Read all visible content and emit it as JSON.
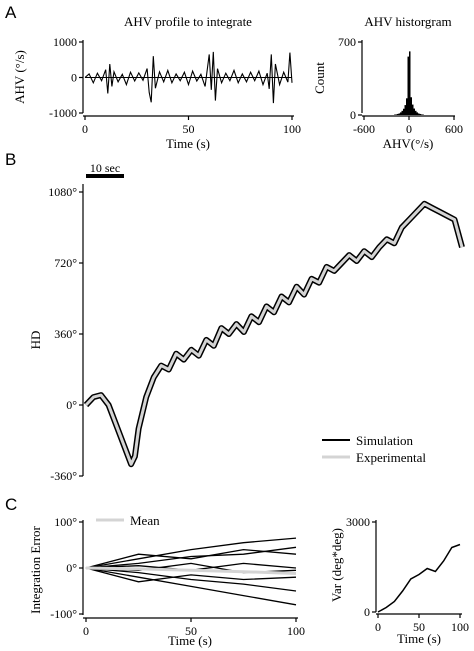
{
  "panel_letters": [
    "A",
    "B",
    "C"
  ],
  "chart_data": [
    {
      "id": "ahv_profile",
      "type": "line",
      "title": "AHV profile to integrate",
      "xlabel": "Time (s)",
      "ylabel": "AHV (°/s)",
      "xlim": [
        0,
        100
      ],
      "ylim": [
        -1000,
        1000
      ],
      "xticks": [
        0,
        50,
        100
      ],
      "yticks": [
        1000,
        0,
        -1000
      ],
      "color": "#000000",
      "series": [
        {
          "x": [
            0,
            2,
            4,
            6,
            8,
            10,
            11,
            12,
            13,
            14,
            16,
            18,
            20,
            22,
            24,
            26,
            28,
            30,
            31,
            32,
            33,
            34,
            36,
            38,
            40,
            42,
            44,
            46,
            48,
            50,
            52,
            54,
            56,
            58,
            60,
            61,
            62,
            63,
            64,
            66,
            68,
            70,
            72,
            74,
            76,
            78,
            80,
            82,
            84,
            86,
            88,
            89,
            90,
            91,
            92,
            94,
            96,
            98,
            99,
            100
          ],
          "values": [
            0,
            100,
            -150,
            120,
            -90,
            220,
            -450,
            380,
            -250,
            160,
            -120,
            90,
            -200,
            150,
            -100,
            130,
            -80,
            250,
            -420,
            -700,
            600,
            -300,
            160,
            -120,
            200,
            -150,
            100,
            -90,
            150,
            -200,
            180,
            -100,
            90,
            -250,
            650,
            -350,
            720,
            -650,
            250,
            -150,
            120,
            -90,
            200,
            -150,
            100,
            -120,
            150,
            -90,
            180,
            -200,
            120,
            -320,
            650,
            -720,
            380,
            -200,
            150,
            -130,
            700,
            -150
          ]
        }
      ]
    },
    {
      "id": "ahv_histogram",
      "type": "bar",
      "title": "AHV historgram",
      "xlabel": "AHV(°/s)",
      "ylabel": "Count",
      "xlim": [
        -600,
        600
      ],
      "ylim": [
        0,
        700
      ],
      "xticks": [
        -600,
        0,
        600
      ],
      "yticks": [
        700,
        0
      ],
      "color": "#000000",
      "categories": [
        -190,
        -170,
        -150,
        -130,
        -110,
        -90,
        -70,
        -50,
        -30,
        -10,
        10,
        30,
        50,
        70,
        90,
        110,
        130,
        150,
        170,
        190
      ],
      "values": [
        4,
        6,
        10,
        15,
        25,
        40,
        60,
        95,
        160,
        560,
        610,
        170,
        100,
        62,
        40,
        25,
        15,
        10,
        6,
        4
      ]
    },
    {
      "id": "hd_trace",
      "type": "line",
      "ylabel": "HD",
      "ylim": [
        -360,
        1080
      ],
      "yticks": [
        1080,
        720,
        360,
        0,
        -360
      ],
      "ytick_suffix": "°",
      "scale_bar_label": "10 sec",
      "scale_bar_seconds": 10,
      "xlim": [
        0,
        100
      ],
      "legend": {
        "position": "bottom-right"
      },
      "series": [
        {
          "name": "Simulation",
          "color": "#000000",
          "width": 6,
          "x": [
            0,
            2,
            4,
            6,
            8,
            10,
            12,
            13,
            14,
            16,
            18,
            20,
            22,
            24,
            26,
            28,
            30,
            32,
            34,
            36,
            38,
            40,
            42,
            44,
            46,
            48,
            50,
            52,
            54,
            56,
            58,
            60,
            62,
            64,
            66,
            68,
            70,
            72,
            74,
            76,
            78,
            80,
            82,
            84,
            86,
            88,
            90,
            92,
            94,
            96,
            98,
            100
          ],
          "values": [
            0,
            40,
            50,
            0,
            -100,
            -200,
            -300,
            -260,
            -120,
            40,
            140,
            200,
            180,
            260,
            230,
            280,
            250,
            330,
            300,
            390,
            360,
            410,
            370,
            450,
            420,
            500,
            470,
            550,
            520,
            600,
            560,
            640,
            620,
            700,
            680,
            720,
            760,
            730,
            780,
            750,
            800,
            840,
            820,
            900,
            940,
            980,
            1020,
            1000,
            980,
            960,
            940,
            800
          ]
        },
        {
          "name": "Experimental",
          "color": "#d4d4d4",
          "width": 3,
          "x": [
            0,
            2,
            4,
            6,
            8,
            10,
            12,
            13,
            14,
            16,
            18,
            20,
            22,
            24,
            26,
            28,
            30,
            32,
            34,
            36,
            38,
            40,
            42,
            44,
            46,
            48,
            50,
            52,
            54,
            56,
            58,
            60,
            62,
            64,
            66,
            68,
            70,
            72,
            74,
            76,
            78,
            80,
            82,
            84,
            86,
            88,
            90,
            92,
            94,
            96,
            98,
            100
          ],
          "values": [
            0,
            40,
            50,
            0,
            -100,
            -200,
            -300,
            -260,
            -120,
            40,
            140,
            200,
            180,
            260,
            230,
            280,
            250,
            330,
            300,
            390,
            360,
            410,
            370,
            450,
            420,
            500,
            470,
            550,
            520,
            600,
            560,
            640,
            620,
            700,
            680,
            720,
            760,
            730,
            780,
            750,
            800,
            840,
            820,
            900,
            940,
            980,
            1020,
            1000,
            980,
            960,
            940,
            800
          ]
        }
      ]
    },
    {
      "id": "integration_error",
      "type": "line",
      "xlabel": "Time (s)",
      "ylabel": "Integration Error",
      "xlim": [
        0,
        100
      ],
      "ylim": [
        -100,
        100
      ],
      "xticks": [
        0,
        50,
        100
      ],
      "yticks": [
        100,
        0,
        -100
      ],
      "ytick_suffix": "°",
      "legend": {
        "position": "top-left",
        "label": "Mean"
      },
      "spread_series": [
        {
          "x": [
            0,
            25,
            50,
            75,
            100
          ],
          "values": [
            0,
            20,
            40,
            55,
            65
          ]
        },
        {
          "x": [
            0,
            25,
            50,
            75,
            100
          ],
          "values": [
            0,
            -20,
            -40,
            -60,
            -80
          ]
        },
        {
          "x": [
            0,
            25,
            50,
            75,
            100
          ],
          "values": [
            0,
            10,
            25,
            30,
            45
          ]
        },
        {
          "x": [
            0,
            25,
            50,
            75,
            100
          ],
          "values": [
            0,
            -10,
            -25,
            -35,
            -50
          ]
        },
        {
          "x": [
            0,
            25,
            50,
            75,
            100
          ],
          "values": [
            0,
            30,
            20,
            40,
            30
          ]
        },
        {
          "x": [
            0,
            25,
            50,
            75,
            100
          ],
          "values": [
            0,
            -30,
            -15,
            -25,
            -20
          ]
        },
        {
          "x": [
            0,
            25,
            50,
            75,
            100
          ],
          "values": [
            0,
            5,
            -5,
            10,
            0
          ]
        },
        {
          "x": [
            0,
            25,
            50,
            75,
            100
          ],
          "values": [
            0,
            -5,
            10,
            -10,
            -5
          ]
        }
      ],
      "mean_series": {
        "name": "Mean",
        "color": "#d4d4d4",
        "x": [
          0,
          25,
          50,
          75,
          100
        ],
        "values": [
          0,
          -2,
          -5,
          -8,
          -12
        ]
      }
    },
    {
      "id": "variance",
      "type": "line",
      "xlabel": "Time (s)",
      "ylabel": "Var (deg*deg)",
      "xlim": [
        0,
        100
      ],
      "ylim": [
        0,
        3000
      ],
      "xticks": [
        0,
        50,
        100
      ],
      "yticks": [
        3000,
        0
      ],
      "color": "#000000",
      "series": [
        {
          "x": [
            0,
            10,
            20,
            30,
            40,
            50,
            60,
            70,
            80,
            90,
            100
          ],
          "values": [
            0,
            150,
            350,
            700,
            1100,
            1250,
            1450,
            1350,
            1700,
            2150,
            2250
          ]
        }
      ]
    }
  ]
}
